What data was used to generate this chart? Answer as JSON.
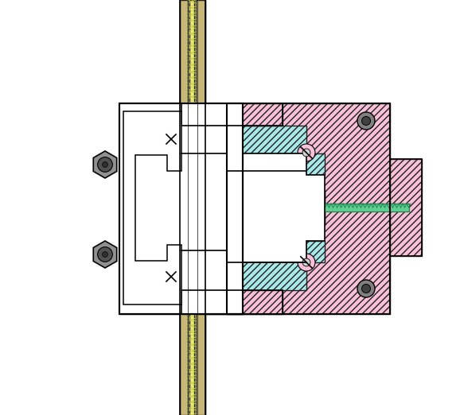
{
  "background_color": "#ffffff",
  "colors": {
    "pink": "#F9C0D8",
    "cyan": "#A8E8E8",
    "tan": "#C8B878",
    "tan_light": "#D8C890",
    "yellow": "#E8E870",
    "yellow_dark": "#D0D050",
    "steel_hi": "#D0D0D8",
    "steel_mid": "#A0A8B0",
    "steel_dark": "#707888",
    "steel_shadow": "#505060",
    "copper": "#E09060",
    "screw_green": "#60D090",
    "bolt_outer": "#808080",
    "bolt_inner": "#505050",
    "black": "#000000",
    "white": "#ffffff",
    "dark_line": "#202020"
  },
  "figsize": [
    5.78,
    5.22
  ],
  "dpi": 100
}
